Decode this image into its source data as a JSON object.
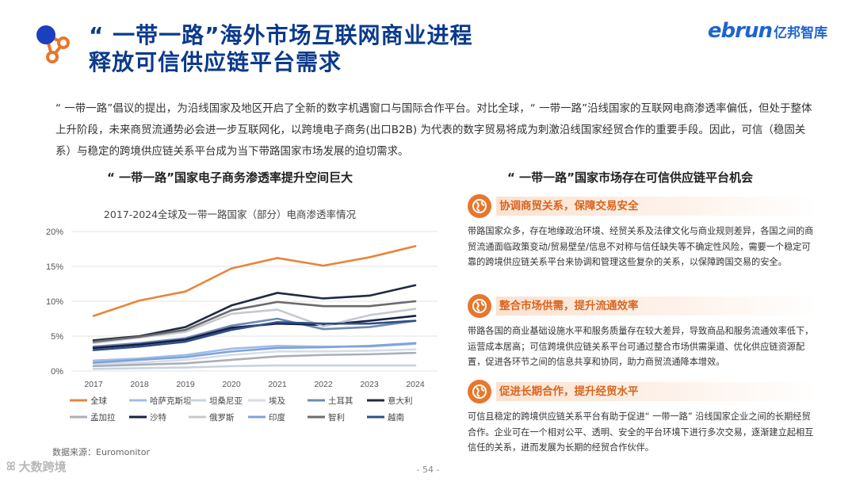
{
  "header": {
    "title_line1": "“ 一带一路”海外市场互联网商业进程",
    "title_line2": "释放可信供应链平台需求",
    "brand_en": "ebrun",
    "brand_cn": "亿邦智库"
  },
  "intro": "“ 一带一路”倡议的提出，为沿线国家及地区开启了全新的数字机遇窗口与国际合作平台。对比全球，“ 一带一路”沿线国家的互联网电商渗透率偏低，但处于整体上升阶段，未来商贸流通势必会进一步互联网化，以跨境电子商务(出口B2B) 为代表的数字贸易将成为刺激沿线国家经贸合作的重要手段。因此，可信（稳固关系）与稳定的跨境供应链关系平台成为当下带路国家市场发展的迫切需求。",
  "left_heading": "“ 一带一路”国家电子商务渗透率提升空间巨大",
  "right_heading": "“ 一带一路”国家市场存在可信供应链平台机会",
  "source": "数据来源：Euromonitor",
  "page_number": "- 54 -",
  "watermark": "大数跨境",
  "colors": {
    "accent": "#e8762c",
    "title": "#0b3a8c",
    "brand": "#1e64d2"
  },
  "cards": [
    {
      "icon": "globe-icon",
      "title": "协调商贸关系，保障交易安全",
      "body": "带路国家众多，存在地缘政治环境、经贸关系及法律文化与商业规则差异，各国之间的商贸流通面临政策变动/贸易壁垒/信息不对称与信任缺失等不确定性风险，需要一个稳定可靠的跨境供应链关系平台来协调和管理这些复杂的关系，以保障跨国交易的安全。"
    },
    {
      "icon": "globe-icon",
      "title": "整合市场供需，提升流通效率",
      "body": "带路各国的商业基础设施水平和服务质量存在较大差异，导致商品和服务流通效率低下，运营成本居高；可信跨境供应链关系平台可通过整合市场供需渠道、优化供应链资源配置，促进各环节之间的信息共享和协同，助力商贸流通降本增效。"
    },
    {
      "icon": "globe-icon",
      "title": "促进长期合作，提升经贸水平",
      "body": "可信且稳定的跨境供应链关系平台有助于促进“ 一带一路” 沿线国家企业之间的长期经贸合作。企业可在一个相对公平、透明、安全的平台环境下进行多次交易，逐渐建立起相互信任的关系，进而发展为长期的经贸合作伙伴。"
    }
  ],
  "chart_data": {
    "type": "line",
    "title": "2017-2024全球及一带一路国家（部分）电商渗透率情况",
    "x": [
      "2017",
      "2018",
      "2019",
      "2020",
      "2021",
      "2022",
      "2023",
      "2024"
    ],
    "ylim": [
      0,
      20
    ],
    "yticks": [
      "0%",
      "5%",
      "10%",
      "15%",
      "20%"
    ],
    "ytick_values": [
      0,
      5,
      10,
      15,
      20
    ],
    "grid": true,
    "legend": "bottom",
    "series": [
      {
        "name": "全球",
        "color": "#e8853a",
        "values": [
          7.9,
          10.1,
          11.4,
          14.7,
          16.2,
          15.1,
          16.3,
          17.9
        ]
      },
      {
        "name": "哈萨克斯坦",
        "color": "#9fbde6",
        "values": [
          1.5,
          1.8,
          2.3,
          3.2,
          3.6,
          3.5,
          3.5,
          3.9
        ]
      },
      {
        "name": "坦桑尼亚",
        "color": "#c9d3df",
        "values": [
          0.3,
          0.4,
          0.5,
          0.7,
          0.8,
          0.8,
          0.8,
          0.8
        ]
      },
      {
        "name": "埃及",
        "color": "#d6dde8",
        "values": [
          1.0,
          1.2,
          1.6,
          2.3,
          2.8,
          2.8,
          2.9,
          3.1
        ]
      },
      {
        "name": "土耳其",
        "color": "#6f89b2",
        "values": [
          3.5,
          4.0,
          4.7,
          6.5,
          7.5,
          6.0,
          6.3,
          7.2
        ]
      },
      {
        "name": "意大利",
        "color": "#1f2a44",
        "values": [
          4.4,
          5.0,
          6.3,
          9.4,
          11.2,
          10.4,
          10.8,
          12.3
        ]
      },
      {
        "name": "孟加拉",
        "color": "#a9afb8",
        "values": [
          0.7,
          0.9,
          1.1,
          1.6,
          2.1,
          2.3,
          2.4,
          2.6
        ]
      },
      {
        "name": "沙特",
        "color": "#15213f",
        "values": [
          3.3,
          3.8,
          4.5,
          6.2,
          6.8,
          6.6,
          7.2,
          7.9
        ]
      },
      {
        "name": "俄罗斯",
        "color": "#c5c9cf",
        "values": [
          4.0,
          4.8,
          5.6,
          8.2,
          8.8,
          6.4,
          8.0,
          8.9
        ]
      },
      {
        "name": "印度",
        "color": "#7fa3d8",
        "values": [
          1.2,
          1.6,
          2.0,
          2.8,
          3.3,
          3.4,
          3.6,
          4.0
        ]
      },
      {
        "name": "智利",
        "color": "#6b6b6b",
        "values": [
          4.2,
          4.9,
          5.9,
          8.7,
          9.9,
          9.3,
          9.3,
          10.0
        ]
      },
      {
        "name": "越南",
        "color": "#2f4f8a",
        "values": [
          3.0,
          3.5,
          4.2,
          5.9,
          7.0,
          6.8,
          6.8,
          7.2
        ]
      }
    ]
  }
}
